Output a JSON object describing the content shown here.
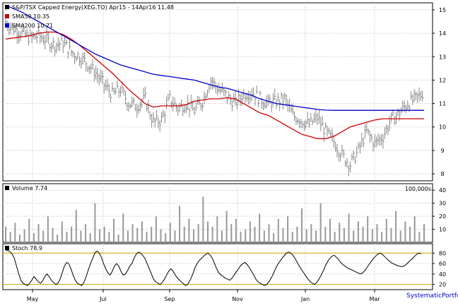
{
  "chart_data": [
    {
      "type": "line",
      "panel": "price",
      "legend": [
        {
          "label": "S&P/TSX Capped Energy(XEG.TO) Apr15 - 14Apr16 11.48",
          "color": "#000000"
        },
        {
          "label": "SMA50 10.35",
          "color": "#cc0000"
        },
        {
          "label": "SMA200 10.71",
          "color": "#0000cc"
        }
      ],
      "x_ticks": [
        "May",
        "Jul",
        "Sep",
        "Nov",
        "Jan",
        "Mar"
      ],
      "y_ticks": [
        "8",
        "9",
        "10",
        "11",
        "12",
        "13",
        "14",
        "15"
      ],
      "ylim": [
        7.7,
        15.3
      ],
      "grid": true,
      "series": [
        {
          "name": "XEG.TO",
          "color": "#888888",
          "x": [
            0,
            1,
            2,
            3,
            4,
            5,
            6,
            7,
            8,
            9,
            10,
            11,
            12,
            13,
            14,
            15,
            16,
            17,
            18,
            19,
            20,
            21,
            22,
            23,
            24,
            25,
            26,
            27,
            28,
            29,
            30,
            31,
            32,
            33,
            34,
            35,
            36,
            37,
            38,
            39,
            40,
            41,
            42,
            43,
            44,
            45,
            46,
            47,
            48,
            49,
            50,
            51
          ],
          "values": [
            14.5,
            14.2,
            14.0,
            13.8,
            13.9,
            13.7,
            13.5,
            13.6,
            13.2,
            13.0,
            12.7,
            12.3,
            11.8,
            11.4,
            11.6,
            11.0,
            10.9,
            11.2,
            10.2,
            10.3,
            11.2,
            10.8,
            11.0,
            10.7,
            11.1,
            12.0,
            11.6,
            11.3,
            11.0,
            11.4,
            11.5,
            11.2,
            11.0,
            11.1,
            11.2,
            10.5,
            10.3,
            10.1,
            10.4,
            9.8,
            9.4,
            8.8,
            8.4,
            9.0,
            9.8,
            9.3,
            9.6,
            10.3,
            10.6,
            11.0,
            11.2,
            11.5
          ]
        },
        {
          "name": "SMA50",
          "color": "#cc0000",
          "x": [
            0,
            1,
            2,
            3,
            4,
            5,
            6,
            7,
            8,
            9,
            10,
            11,
            12,
            13,
            14,
            15,
            16,
            17,
            18,
            19,
            20,
            21,
            22,
            23,
            24,
            25,
            26,
            27,
            28,
            29,
            30,
            31,
            32,
            33,
            34,
            35,
            36,
            37,
            38,
            39,
            40,
            41,
            42,
            43,
            44,
            45,
            46,
            47,
            48,
            49,
            50,
            51
          ],
          "values": [
            13.75,
            13.8,
            13.85,
            13.9,
            14.0,
            14.05,
            14.05,
            13.95,
            13.75,
            13.5,
            13.2,
            12.9,
            12.6,
            12.3,
            11.95,
            11.6,
            11.3,
            11.0,
            10.85,
            10.9,
            10.9,
            10.9,
            10.95,
            11.1,
            11.15,
            11.2,
            11.2,
            11.25,
            11.2,
            11.0,
            10.8,
            10.6,
            10.5,
            10.3,
            10.1,
            9.9,
            9.7,
            9.6,
            9.5,
            9.5,
            9.6,
            9.8,
            10.0,
            10.1,
            10.2,
            10.3,
            10.35,
            10.35,
            10.35,
            10.35,
            10.35,
            10.35
          ]
        },
        {
          "name": "SMA200",
          "color": "#0000cc",
          "x": [
            0,
            1,
            2,
            3,
            4,
            5,
            6,
            7,
            8,
            9,
            10,
            11,
            12,
            13,
            14,
            15,
            16,
            17,
            18,
            19,
            20,
            21,
            22,
            23,
            24,
            25,
            26,
            27,
            28,
            29,
            30,
            31,
            32,
            33,
            34,
            35,
            36,
            37,
            38,
            39,
            40,
            41,
            42,
            43,
            44,
            45,
            46,
            47,
            48,
            49,
            50,
            51
          ],
          "values": [
            15.2,
            15.05,
            14.9,
            14.7,
            14.5,
            14.3,
            14.1,
            13.9,
            13.7,
            13.5,
            13.3,
            13.1,
            12.95,
            12.8,
            12.65,
            12.55,
            12.45,
            12.35,
            12.25,
            12.2,
            12.15,
            12.1,
            12.05,
            12.0,
            11.9,
            11.8,
            11.7,
            11.65,
            11.55,
            11.45,
            11.35,
            11.2,
            11.1,
            11.0,
            10.95,
            10.9,
            10.85,
            10.8,
            10.75,
            10.72,
            10.71,
            10.71,
            10.71,
            10.71,
            10.71,
            10.71,
            10.71,
            10.71,
            10.71,
            10.71,
            10.71,
            10.71
          ]
        }
      ]
    },
    {
      "type": "bar",
      "panel": "volume",
      "legend": [
        {
          "label": "Volume 7.74",
          "color": "#000000"
        }
      ],
      "unit_label": "100,000s",
      "y_ticks": [
        "10",
        "20",
        "30",
        "40"
      ],
      "ylim": [
        0,
        45
      ],
      "grid": true,
      "values": [
        12,
        8,
        15,
        6,
        10,
        18,
        7,
        14,
        9,
        20,
        11,
        6,
        16,
        8,
        12,
        25,
        9,
        14,
        7,
        30,
        10,
        12,
        8,
        18,
        6,
        22,
        9,
        14,
        11,
        16,
        8,
        12,
        20,
        10,
        7,
        15,
        9,
        28,
        12,
        18,
        10,
        14,
        35,
        16,
        12,
        20,
        9,
        24,
        14,
        18,
        8,
        10,
        16,
        12,
        22,
        9,
        14,
        7,
        18,
        11,
        20,
        8,
        12,
        26,
        10,
        14,
        9,
        30,
        12,
        18,
        8,
        15,
        11,
        22,
        9,
        16,
        12,
        20,
        10,
        14,
        8,
        18,
        11,
        24,
        9,
        16,
        12,
        20,
        8,
        14
      ]
    },
    {
      "type": "line",
      "panel": "stochastic",
      "legend": [
        {
          "label": "Stoch 78.9",
          "color": "#000000"
        }
      ],
      "y_ticks": [
        "20",
        "40",
        "60",
        "80"
      ],
      "ylim": [
        10,
        98
      ],
      "grid": true,
      "reference_lines": [
        20,
        80
      ],
      "values": [
        86,
        85,
        83,
        78,
        70,
        55,
        40,
        28,
        22,
        20,
        18,
        22,
        28,
        35,
        30,
        25,
        22,
        27,
        35,
        40,
        35,
        28,
        24,
        20,
        22,
        30,
        42,
        55,
        62,
        60,
        50,
        38,
        28,
        22,
        20,
        18,
        24,
        35,
        48,
        60,
        70,
        80,
        84,
        80,
        72,
        60,
        50,
        42,
        38,
        45,
        55,
        60,
        55,
        45,
        38,
        40,
        46,
        55,
        60,
        70,
        78,
        82,
        80,
        76,
        70,
        60,
        50,
        40,
        30,
        25,
        22,
        20,
        24,
        30,
        38,
        46,
        50,
        45,
        38,
        32,
        28,
        24,
        20,
        18,
        22,
        30,
        40,
        52,
        60,
        66,
        70,
        74,
        78,
        80,
        76,
        70,
        60,
        50,
        42,
        38,
        35,
        32,
        30,
        28,
        32,
        38,
        44,
        50,
        56,
        60,
        62,
        58,
        52,
        45,
        38,
        30,
        25,
        22,
        20,
        18,
        20,
        25,
        32,
        40,
        50,
        58,
        64,
        70,
        75,
        80,
        82,
        80,
        76,
        70,
        62,
        55,
        48,
        42,
        36,
        30,
        25,
        22,
        20,
        24,
        30,
        38,
        46,
        56,
        64,
        70,
        74,
        76,
        72,
        68,
        62,
        58,
        55,
        52,
        50,
        48,
        46,
        44,
        42,
        40,
        42,
        46,
        52,
        58,
        64,
        70,
        74,
        78,
        80,
        78,
        74,
        70,
        66,
        62,
        60,
        58,
        56,
        55,
        54,
        55,
        58,
        62,
        66,
        70,
        74,
        78,
        80,
        78.9
      ]
    }
  ],
  "footer": {
    "brand": "SystematicPortfolio"
  }
}
